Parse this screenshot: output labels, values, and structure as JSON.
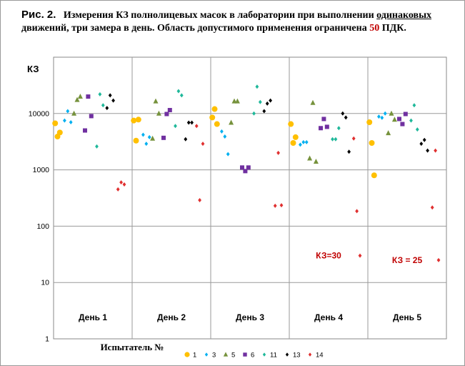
{
  "caption": {
    "lead": "Рис. 2",
    "dot": ".",
    "part1": "Измерения КЗ полнолицевых масок в лаборатории при выполнении ",
    "underlined": "одинаковых",
    "part2": " движений, три замера в день. Область допустимого применения ограничена ",
    "limit": "50",
    "part3": " ПДК."
  },
  "chart_data": {
    "type": "scatter",
    "ylabel": "КЗ",
    "xlabel": "Испытатель №",
    "yscale": "log",
    "ylim": [
      1,
      100000
    ],
    "yticks": [
      1,
      10,
      100,
      1000,
      10000
    ],
    "grid": true,
    "legend_position": "bottom",
    "groups": [
      "День 1",
      "День 2",
      "День 3",
      "День 4",
      "День 5"
    ],
    "annotations": [
      {
        "text": "КЗ=30",
        "group": 3,
        "value": 30,
        "color": "#c00000"
      },
      {
        "text": "КЗ = 25",
        "group": 4,
        "value": 25,
        "color": "#c00000"
      }
    ],
    "series": [
      {
        "name": "1",
        "color": "#ffc000",
        "marker": "circle",
        "points": [
          [
            0,
            0.02,
            6700
          ],
          [
            0,
            0.05,
            3900
          ],
          [
            0,
            0.08,
            4600
          ],
          [
            1,
            0.02,
            7500
          ],
          [
            1,
            0.05,
            3300
          ],
          [
            1,
            0.08,
            7800
          ],
          [
            2,
            0.02,
            8500
          ],
          [
            2,
            0.05,
            12000
          ],
          [
            2,
            0.08,
            6500
          ],
          [
            3,
            0.02,
            6500
          ],
          [
            3,
            0.05,
            3000
          ],
          [
            3,
            0.08,
            3800
          ],
          [
            4,
            0.02,
            7000
          ],
          [
            4,
            0.05,
            3000
          ],
          [
            4,
            0.08,
            800
          ]
        ]
      },
      {
        "name": "3",
        "color": "#00b0f0",
        "marker": "diamond",
        "points": [
          [
            0,
            0.14,
            7500
          ],
          [
            0,
            0.18,
            11000
          ],
          [
            0,
            0.22,
            7000
          ],
          [
            1,
            0.14,
            4200
          ],
          [
            1,
            0.18,
            2900
          ],
          [
            1,
            0.22,
            3800
          ],
          [
            2,
            0.14,
            4800
          ],
          [
            2,
            0.18,
            3900
          ],
          [
            2,
            0.22,
            1900
          ],
          [
            3,
            0.14,
            2800
          ],
          [
            3,
            0.18,
            3100
          ],
          [
            3,
            0.22,
            3100
          ],
          [
            4,
            0.14,
            8800
          ],
          [
            4,
            0.18,
            8400
          ],
          [
            4,
            0.22,
            10000
          ]
        ]
      },
      {
        "name": "5",
        "color": "#76923c",
        "marker": "triangle",
        "points": [
          [
            0,
            0.26,
            10000
          ],
          [
            0,
            0.3,
            17500
          ],
          [
            0,
            0.34,
            20000
          ],
          [
            1,
            0.26,
            3600
          ],
          [
            1,
            0.3,
            16500
          ],
          [
            1,
            0.34,
            10000
          ],
          [
            2,
            0.26,
            6900
          ],
          [
            2,
            0.3,
            16500
          ],
          [
            2,
            0.34,
            16500
          ],
          [
            3,
            0.26,
            1600
          ],
          [
            3,
            0.3,
            15500
          ],
          [
            3,
            0.34,
            1400
          ],
          [
            4,
            0.26,
            4500
          ],
          [
            4,
            0.3,
            10000
          ],
          [
            4,
            0.34,
            7800
          ]
        ]
      },
      {
        "name": "6",
        "color": "#7030a0",
        "marker": "square",
        "points": [
          [
            0,
            0.4,
            5000
          ],
          [
            0,
            0.44,
            20000
          ],
          [
            0,
            0.48,
            9000
          ],
          [
            1,
            0.4,
            3700
          ],
          [
            1,
            0.44,
            9800
          ],
          [
            1,
            0.48,
            11500
          ],
          [
            2,
            0.4,
            1100
          ],
          [
            2,
            0.44,
            950
          ],
          [
            2,
            0.48,
            1100
          ],
          [
            3,
            0.4,
            5500
          ],
          [
            3,
            0.44,
            8000
          ],
          [
            3,
            0.48,
            5800
          ],
          [
            4,
            0.4,
            8000
          ],
          [
            4,
            0.44,
            6500
          ],
          [
            4,
            0.48,
            9800
          ]
        ]
      },
      {
        "name": "11",
        "color": "#1fb89a",
        "marker": "diamond",
        "points": [
          [
            0,
            0.55,
            2600
          ],
          [
            0,
            0.59,
            22000
          ],
          [
            0,
            0.63,
            14000
          ],
          [
            1,
            0.55,
            6000
          ],
          [
            1,
            0.59,
            25000
          ],
          [
            1,
            0.63,
            21000
          ],
          [
            2,
            0.55,
            10000
          ],
          [
            2,
            0.59,
            30000
          ],
          [
            2,
            0.63,
            16000
          ],
          [
            3,
            0.55,
            3500
          ],
          [
            3,
            0.59,
            3500
          ],
          [
            3,
            0.63,
            5500
          ],
          [
            4,
            0.55,
            7500
          ],
          [
            4,
            0.59,
            14000
          ],
          [
            4,
            0.63,
            5200
          ]
        ]
      },
      {
        "name": "13",
        "color": "#000000",
        "marker": "diamond",
        "points": [
          [
            0,
            0.68,
            12500
          ],
          [
            0,
            0.72,
            21000
          ],
          [
            0,
            0.76,
            17000
          ],
          [
            1,
            0.68,
            3500
          ],
          [
            1,
            0.72,
            6900
          ],
          [
            1,
            0.76,
            6900
          ],
          [
            2,
            0.68,
            11000
          ],
          [
            2,
            0.72,
            15000
          ],
          [
            2,
            0.76,
            17000
          ],
          [
            3,
            0.68,
            10000
          ],
          [
            3,
            0.72,
            8500
          ],
          [
            3,
            0.76,
            2100
          ],
          [
            4,
            0.68,
            2900
          ],
          [
            4,
            0.72,
            3400
          ],
          [
            4,
            0.76,
            2200
          ]
        ]
      },
      {
        "name": "14",
        "color": "#e03030",
        "marker": "diamond",
        "points": [
          [
            0,
            0.82,
            450
          ],
          [
            0,
            0.86,
            600
          ],
          [
            0,
            0.9,
            550
          ],
          [
            1,
            0.82,
            6000
          ],
          [
            1,
            0.86,
            290
          ],
          [
            1,
            0.9,
            2900
          ],
          [
            2,
            0.82,
            230
          ],
          [
            2,
            0.86,
            2000
          ],
          [
            2,
            0.9,
            235
          ],
          [
            3,
            0.82,
            3600
          ],
          [
            3,
            0.86,
            185
          ],
          [
            3,
            0.9,
            30
          ],
          [
            4,
            0.82,
            215
          ],
          [
            4,
            0.86,
            2200
          ],
          [
            4,
            0.9,
            25
          ]
        ]
      }
    ]
  }
}
